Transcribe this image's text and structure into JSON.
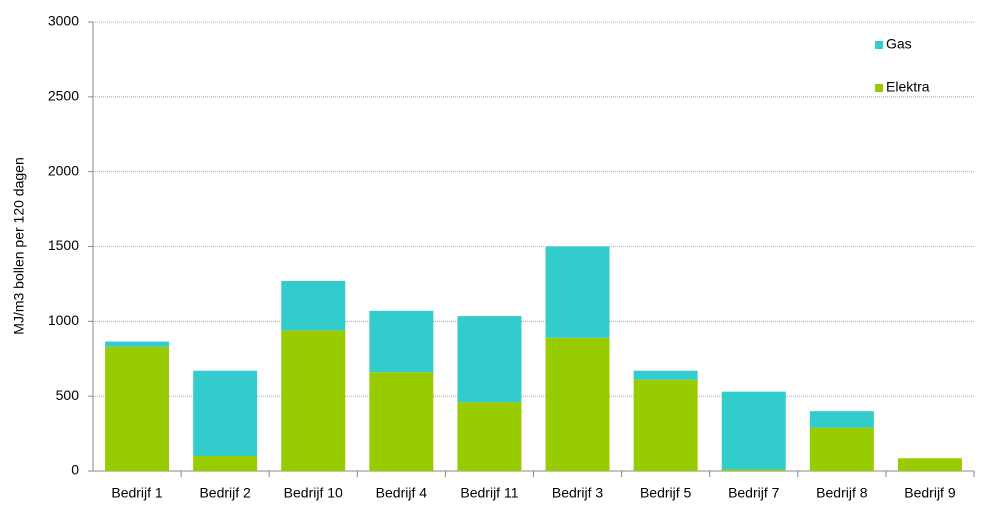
{
  "chart_data": {
    "type": "stacked_bar",
    "y_label": "MJ/m3 bollen per 120 dagen",
    "categories": [
      "Bedrijf 1",
      "Bedrijf 2",
      "Bedrijf 10",
      "Bedrijf 4",
      "Bedrijf 11",
      "Bedrijf 3",
      "Bedrijf 5",
      "Bedrijf 7",
      "Bedrijf 8",
      "Bedrijf 9"
    ],
    "series": [
      {
        "name": "Elektra",
        "color": "#99cc00",
        "values": [
          830,
          100,
          940,
          660,
          460,
          890,
          610,
          10,
          290,
          85
        ]
      },
      {
        "name": "Gas",
        "color": "#33cccc",
        "values": [
          35,
          570,
          330,
          410,
          575,
          610,
          60,
          520,
          110,
          0
        ]
      }
    ],
    "ylim": [
      0,
      3000
    ],
    "yticks": [
      0,
      500,
      1000,
      1500,
      2000,
      2500,
      3000
    ],
    "grid": true,
    "legend": "top-right"
  }
}
